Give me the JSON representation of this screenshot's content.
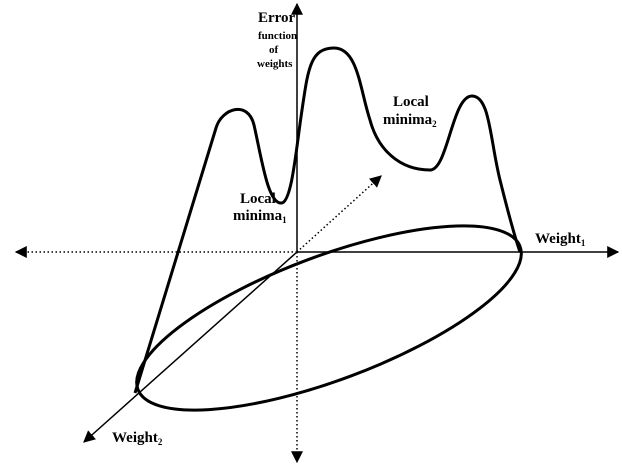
{
  "axes": {
    "error": {
      "lines": [
        "Error",
        "function",
        "of",
        "weights"
      ]
    },
    "weight1": {
      "text": "Weight",
      "subscript": "1"
    },
    "weight2": {
      "text": "Weight",
      "subscript": "2"
    }
  },
  "annotations": [
    {
      "line1": "Local",
      "line2": "minima",
      "subscript": "1"
    },
    {
      "line1": "Local",
      "line2": "minima",
      "subscript": "2"
    }
  ]
}
